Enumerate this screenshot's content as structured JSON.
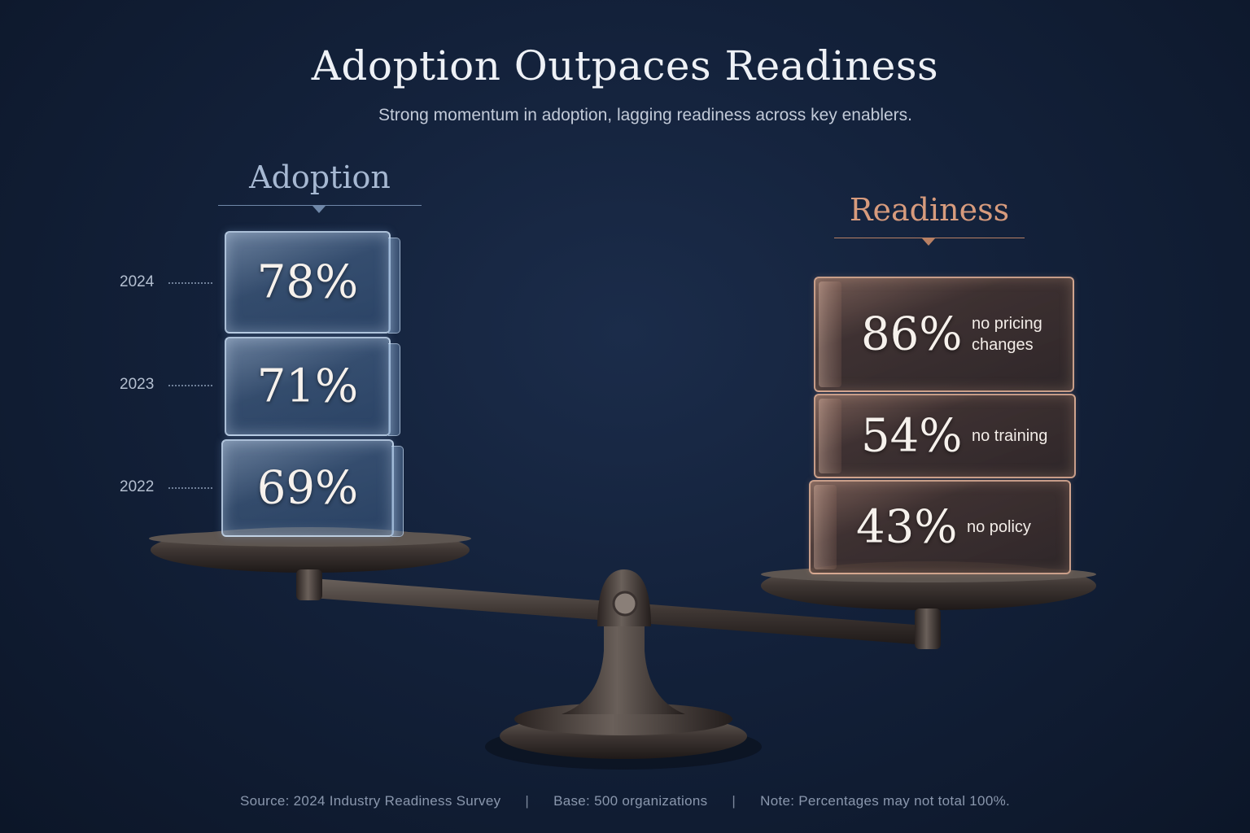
{
  "chart_data": {
    "type": "bar",
    "title": "Adoption Outpaces Readiness",
    "subtitle": "Strong momentum in adoption, lagging readiness across key enablers.",
    "groups": [
      {
        "name": "Adoption",
        "color": "#a6b8d2",
        "items": [
          {
            "label": "2024",
            "value": 78,
            "display": "78%"
          },
          {
            "label": "2023",
            "value": 71,
            "display": "71%"
          },
          {
            "label": "2022",
            "value": 69,
            "display": "69%"
          }
        ]
      },
      {
        "name": "Readiness",
        "color": "#d79b7d",
        "items": [
          {
            "label": "no pricing\nchanges",
            "value": 86,
            "display": "86%"
          },
          {
            "label": "no training",
            "value": 54,
            "display": "54%"
          },
          {
            "label": "no policy",
            "value": 43,
            "display": "43%"
          }
        ]
      }
    ]
  },
  "footer": {
    "source": "Source: 2024 Industry Readiness Survey",
    "sep": "|",
    "base": "Base: 500 organizations",
    "note": "Note: Percentages may not total 100%."
  }
}
